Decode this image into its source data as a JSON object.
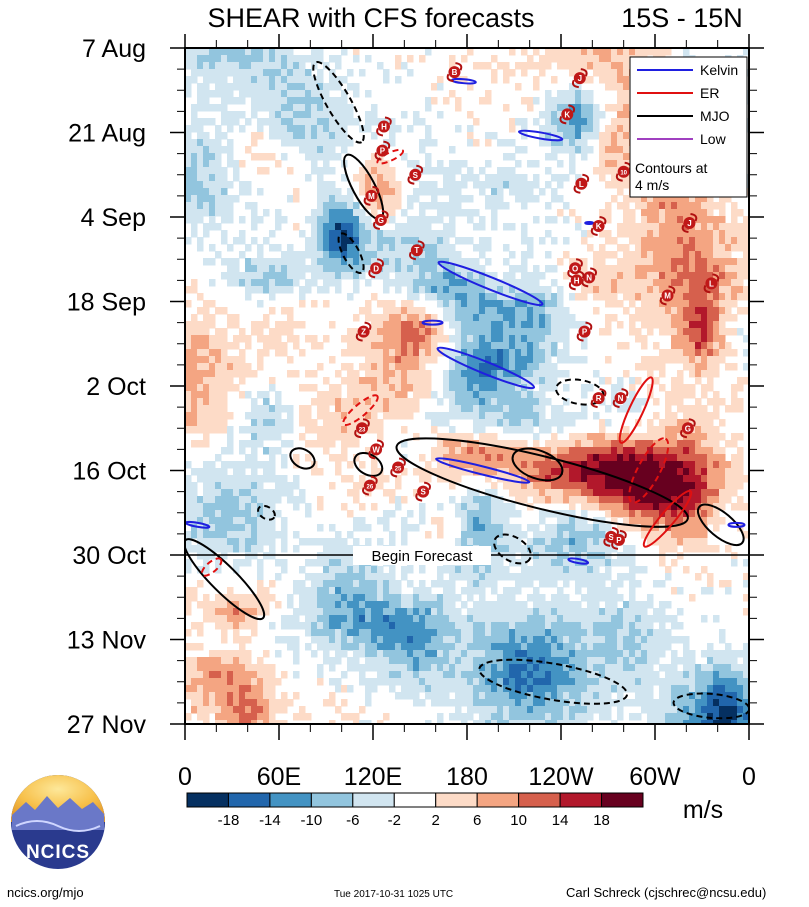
{
  "chart_data": {
    "type": "heatmap",
    "title": "SHEAR with CFS forecasts",
    "region": "15S - 15N",
    "x_axis": {
      "ticks": [
        "0",
        "60E",
        "120E",
        "180",
        "120W",
        "60W",
        "0"
      ],
      "range_deg": [
        0,
        360
      ]
    },
    "y_axis": {
      "ticks": [
        "7 Aug",
        "21 Aug",
        "4 Sep",
        "18 Sep",
        "2 Oct",
        "16 Oct",
        "30 Oct",
        "13 Nov",
        "27 Nov"
      ],
      "range_days": [
        0,
        112
      ]
    },
    "colorbar": {
      "levels": [
        "-18",
        "-14",
        "-10",
        "-6",
        "-2",
        "2",
        "6",
        "10",
        "14",
        "18"
      ],
      "colors": [
        "#053061",
        "#2166ac",
        "#4393c3",
        "#92c5de",
        "#d1e5f0",
        "#ffffff",
        "#fddbc7",
        "#f4a582",
        "#d6604d",
        "#b2182b",
        "#67001f"
      ],
      "units": "m/s"
    },
    "legend": {
      "position": "top-right",
      "entries": [
        {
          "label": "Kelvin",
          "color": "#1f1fe0"
        },
        {
          "label": "ER",
          "color": "#e01010"
        },
        {
          "label": "MJO",
          "color": "#000000"
        },
        {
          "label": "Low",
          "color": "#a040c0"
        }
      ],
      "note_line1": "Contours at",
      "note_line2": "4 m/s"
    },
    "forecast_marker": {
      "label": "Begin Forecast",
      "date": "30 Oct",
      "day": 84
    },
    "storms": [
      {
        "label": "B",
        "lon": 172,
        "day": 4
      },
      {
        "label": "J",
        "lon": 252,
        "day": 5
      },
      {
        "label": "K",
        "lon": 244,
        "day": 11
      },
      {
        "label": "H",
        "lon": 127,
        "day": 13
      },
      {
        "label": "P",
        "lon": 126,
        "day": 17
      },
      {
        "label": "S",
        "lon": 147,
        "day": 21
      },
      {
        "label": "10",
        "lon": 280,
        "day": 20.5
      },
      {
        "label": "L",
        "lon": 253,
        "day": 22.5
      },
      {
        "label": "M",
        "lon": 119,
        "day": 24.5
      },
      {
        "label": "G",
        "lon": 125,
        "day": 28.5
      },
      {
        "label": "K",
        "lon": 264,
        "day": 29.5
      },
      {
        "label": "J",
        "lon": 322,
        "day": 29
      },
      {
        "label": "T",
        "lon": 148,
        "day": 33.5
      },
      {
        "label": "D",
        "lon": 122,
        "day": 36.5
      },
      {
        "label": "O",
        "lon": 249,
        "day": 36.5
      },
      {
        "label": "N",
        "lon": 258,
        "day": 38
      },
      {
        "label": "H",
        "lon": 250,
        "day": 38.5
      },
      {
        "label": "L",
        "lon": 336,
        "day": 39
      },
      {
        "label": "M",
        "lon": 308,
        "day": 41
      },
      {
        "label": "Z",
        "lon": 114,
        "day": 47
      },
      {
        "label": "P",
        "lon": 255,
        "day": 47
      },
      {
        "label": "R",
        "lon": 264,
        "day": 58
      },
      {
        "label": "N",
        "lon": 278,
        "day": 58
      },
      {
        "label": "23",
        "lon": 113,
        "day": 63
      },
      {
        "label": "G",
        "lon": 321,
        "day": 63
      },
      {
        "label": "W",
        "lon": 122,
        "day": 66.5
      },
      {
        "label": "25",
        "lon": 136,
        "day": 69.5
      },
      {
        "label": "26",
        "lon": 118,
        "day": 72.5
      },
      {
        "label": "S",
        "lon": 152,
        "day": 73.5
      },
      {
        "label": "S",
        "lon": 272,
        "day": 81
      },
      {
        "label": "P",
        "lon": 277,
        "day": 81.5
      }
    ]
  },
  "footer": {
    "left": "ncics.org/mjo",
    "center": "Tue 2017-10-31 1025 UTC",
    "right": "Carl Schreck (cjschrec@ncsu.edu)",
    "logo_text": "NCICS"
  }
}
